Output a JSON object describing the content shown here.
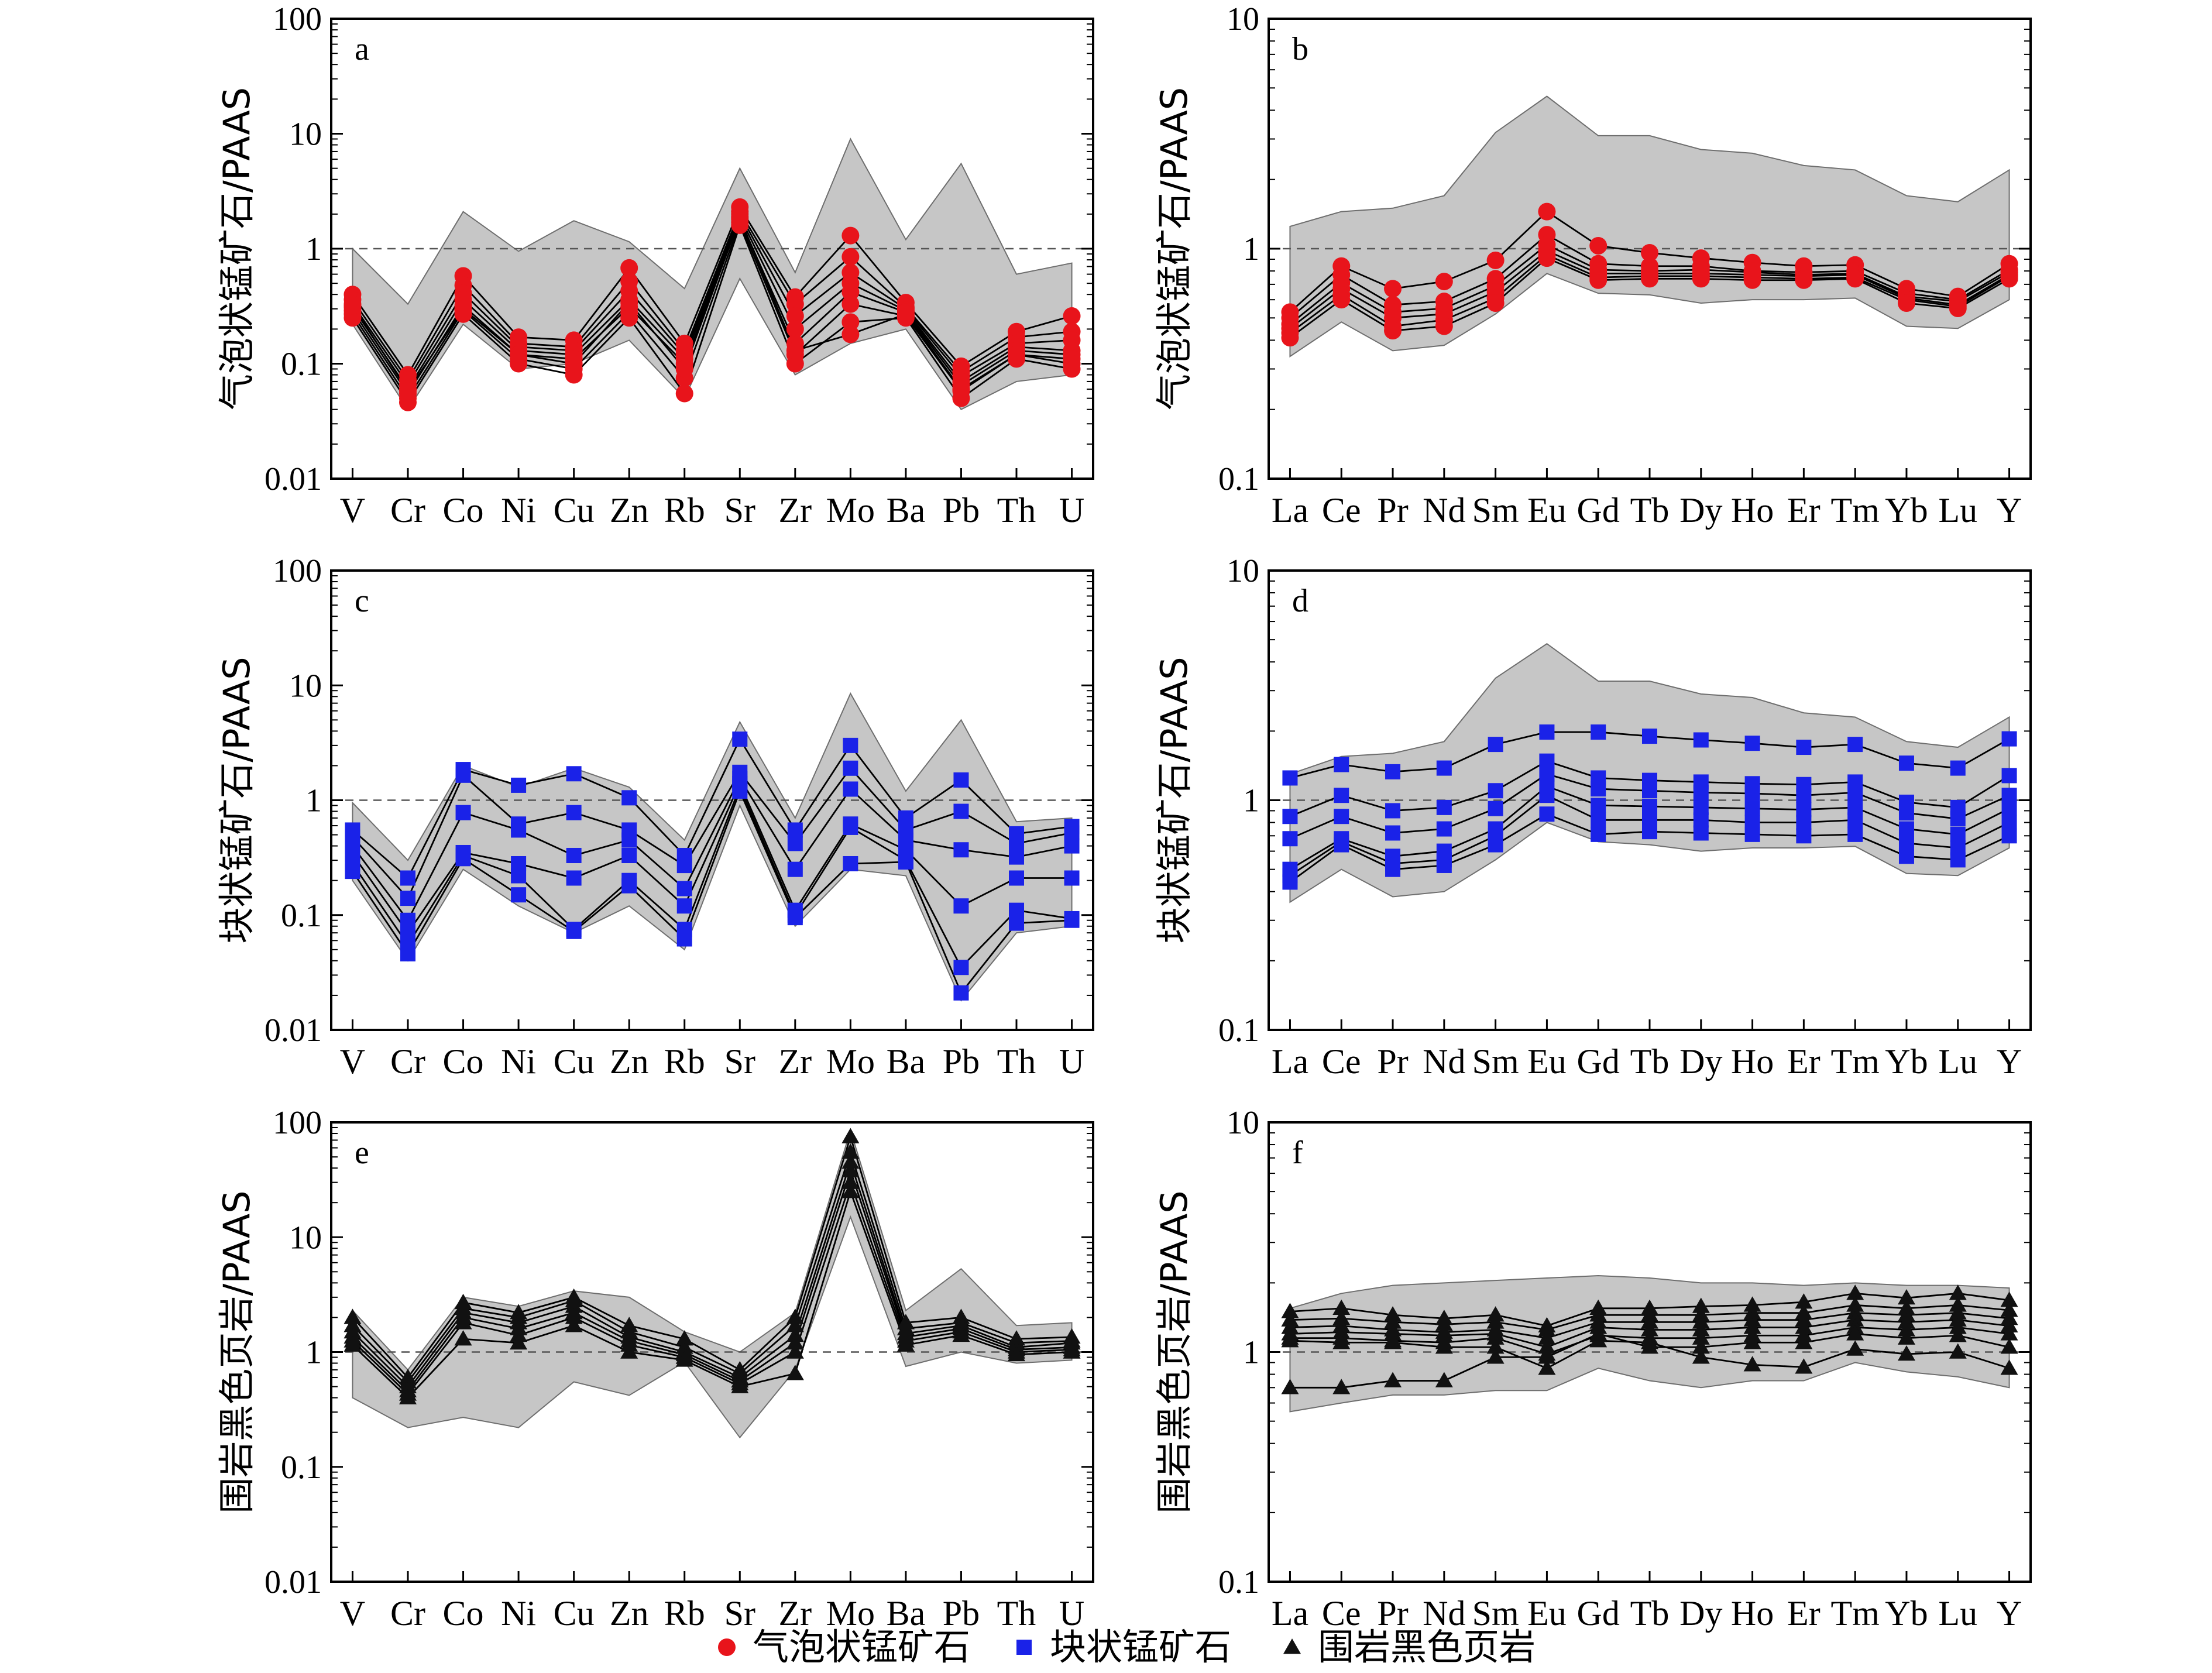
{
  "legend": [
    {
      "label": "气泡状锰矿石",
      "marker": "circle",
      "color": "#e8141b"
    },
    {
      "label": "块状锰矿石",
      "marker": "square",
      "color": "#1a22e8"
    },
    {
      "label": "围岩黑色页岩",
      "marker": "triangle",
      "color": "#111111"
    }
  ],
  "colors": {
    "envelope": "#c6c6c6",
    "line": "#000000",
    "reference_line": "#555555"
  },
  "chart_data": [
    {
      "panel": "a",
      "type": "line",
      "yscale": "log",
      "ylim": [
        0.01,
        100
      ],
      "ylabel": "气泡状锰矿石/PAAS",
      "yticks": [
        "0.01",
        "0.1",
        "1",
        "10",
        "100"
      ],
      "reference_y": 1,
      "categories": [
        "V",
        "Cr",
        "Co",
        "Ni",
        "Cu",
        "Zn",
        "Rb",
        "Sr",
        "Zr",
        "Mo",
        "Ba",
        "Pb",
        "Th",
        "U"
      ],
      "marker": "circle",
      "color": "#e8141b",
      "envelope_upper": [
        1.0,
        0.33,
        2.1,
        0.95,
        1.75,
        1.15,
        0.45,
        5.0,
        0.62,
        9.0,
        1.2,
        5.5,
        0.6,
        0.75
      ],
      "envelope_lower": [
        0.22,
        0.04,
        0.22,
        0.09,
        0.1,
        0.16,
        0.05,
        0.55,
        0.08,
        0.15,
        0.2,
        0.04,
        0.07,
        0.08
      ],
      "series": [
        {
          "values": [
            0.4,
            0.08,
            0.58,
            0.17,
            0.16,
            0.68,
            0.15,
            2.3,
            0.38,
            1.3,
            0.34,
            0.095,
            0.19,
            0.26
          ]
        },
        {
          "values": [
            0.36,
            0.072,
            0.48,
            0.15,
            0.14,
            0.52,
            0.13,
            2.1,
            0.33,
            0.85,
            0.31,
            0.085,
            0.17,
            0.19
          ]
        },
        {
          "values": [
            0.33,
            0.066,
            0.41,
            0.14,
            0.13,
            0.43,
            0.12,
            2.0,
            0.26,
            0.62,
            0.3,
            0.078,
            0.15,
            0.16
          ]
        },
        {
          "values": [
            0.31,
            0.06,
            0.36,
            0.13,
            0.12,
            0.36,
            0.11,
            1.9,
            0.2,
            0.5,
            0.29,
            0.07,
            0.14,
            0.13
          ]
        },
        {
          "values": [
            0.29,
            0.055,
            0.32,
            0.12,
            0.11,
            0.31,
            0.1,
            1.8,
            0.15,
            0.42,
            0.28,
            0.065,
            0.13,
            0.12
          ]
        },
        {
          "values": [
            0.27,
            0.05,
            0.29,
            0.11,
            0.09,
            0.28,
            0.075,
            1.7,
            0.12,
            0.33,
            0.26,
            0.058,
            0.12,
            0.11
          ]
        },
        {
          "values": [
            0.25,
            0.046,
            0.27,
            0.1,
            0.08,
            0.25,
            0.055,
            1.6,
            0.1,
            0.23,
            0.25,
            0.05,
            0.11,
            0.09
          ]
        },
        {
          "values": [
            0.32,
            0.058,
            0.3,
            0.12,
            0.1,
            0.34,
            0.09,
            1.85,
            0.13,
            0.18,
            0.27,
            0.06,
            0.12,
            0.1
          ]
        }
      ]
    },
    {
      "panel": "b",
      "type": "line",
      "yscale": "log",
      "ylim": [
        0.1,
        10
      ],
      "ylabel": "气泡状锰矿石/PAAS",
      "yticks": [
        "0.1",
        "1",
        "10"
      ],
      "reference_y": 1,
      "categories": [
        "La",
        "Ce",
        "Pr",
        "Nd",
        "Sm",
        "Eu",
        "Gd",
        "Tb",
        "Dy",
        "Ho",
        "Er",
        "Tm",
        "Yb",
        "Lu",
        "Y"
      ],
      "marker": "circle",
      "color": "#e8141b",
      "envelope_upper": [
        1.25,
        1.45,
        1.5,
        1.7,
        3.2,
        4.6,
        3.1,
        3.1,
        2.7,
        2.6,
        2.3,
        2.2,
        1.7,
        1.6,
        2.2
      ],
      "envelope_lower": [
        0.34,
        0.48,
        0.36,
        0.38,
        0.52,
        0.78,
        0.64,
        0.63,
        0.58,
        0.6,
        0.6,
        0.61,
        0.46,
        0.45,
        0.6
      ],
      "series": [
        {
          "values": [
            0.53,
            0.84,
            0.67,
            0.72,
            0.89,
            1.45,
            1.03,
            0.96,
            0.91,
            0.87,
            0.84,
            0.85,
            0.67,
            0.62,
            0.86
          ]
        },
        {
          "values": [
            0.5,
            0.77,
            0.57,
            0.59,
            0.74,
            1.15,
            0.86,
            0.84,
            0.84,
            0.8,
            0.79,
            0.8,
            0.64,
            0.6,
            0.81
          ]
        },
        {
          "values": [
            0.47,
            0.71,
            0.53,
            0.55,
            0.69,
            1.04,
            0.81,
            0.8,
            0.81,
            0.79,
            0.77,
            0.78,
            0.62,
            0.59,
            0.79
          ]
        },
        {
          "values": [
            0.45,
            0.67,
            0.5,
            0.52,
            0.65,
            0.98,
            0.78,
            0.78,
            0.78,
            0.77,
            0.76,
            0.77,
            0.61,
            0.57,
            0.77
          ]
        },
        {
          "values": [
            0.43,
            0.63,
            0.46,
            0.49,
            0.61,
            0.94,
            0.75,
            0.76,
            0.76,
            0.75,
            0.74,
            0.75,
            0.6,
            0.56,
            0.76
          ]
        },
        {
          "values": [
            0.41,
            0.6,
            0.44,
            0.46,
            0.58,
            0.91,
            0.73,
            0.74,
            0.74,
            0.73,
            0.73,
            0.74,
            0.58,
            0.55,
            0.74
          ]
        }
      ]
    },
    {
      "panel": "c",
      "type": "line",
      "yscale": "log",
      "ylim": [
        0.01,
        100
      ],
      "ylabel": "块状锰矿石/PAAS",
      "yticks": [
        "0.01",
        "0.1",
        "1",
        "10",
        "100"
      ],
      "reference_y": 1,
      "categories": [
        "V",
        "Cr",
        "Co",
        "Ni",
        "Cu",
        "Zn",
        "Rb",
        "Sr",
        "Zr",
        "Mo",
        "Ba",
        "Pb",
        "Th",
        "U"
      ],
      "marker": "square",
      "color": "#1a22e8",
      "envelope_upper": [
        0.95,
        0.3,
        2.0,
        1.3,
        1.9,
        1.3,
        0.45,
        4.8,
        0.7,
        8.5,
        1.2,
        5.0,
        0.65,
        0.7
      ],
      "envelope_lower": [
        0.2,
        0.04,
        0.25,
        0.12,
        0.07,
        0.12,
        0.05,
        0.9,
        0.08,
        0.25,
        0.22,
        0.018,
        0.07,
        0.08
      ],
      "series": [
        {
          "values": [
            0.55,
            0.21,
            1.85,
            1.35,
            1.7,
            1.05,
            0.33,
            3.4,
            0.55,
            3.0,
            0.7,
            1.5,
            0.51,
            0.59
          ]
        },
        {
          "values": [
            0.48,
            0.14,
            1.65,
            0.62,
            0.78,
            0.55,
            0.27,
            1.75,
            0.42,
            1.9,
            0.55,
            0.8,
            0.42,
            0.52
          ]
        },
        {
          "values": [
            0.4,
            0.09,
            0.78,
            0.55,
            0.33,
            0.45,
            0.17,
            1.55,
            0.25,
            1.25,
            0.45,
            0.37,
            0.32,
            0.4
          ]
        },
        {
          "values": [
            0.34,
            0.07,
            0.35,
            0.28,
            0.21,
            0.33,
            0.12,
            1.4,
            0.11,
            0.62,
            0.37,
            0.12,
            0.21,
            0.21
          ]
        },
        {
          "values": [
            0.28,
            0.055,
            0.33,
            0.22,
            0.075,
            0.2,
            0.075,
            1.3,
            0.1,
            0.58,
            0.3,
            0.035,
            0.11,
            0.093
          ]
        },
        {
          "values": [
            0.24,
            0.046,
            0.31,
            0.15,
            0.072,
            0.18,
            0.062,
            1.2,
            0.095,
            0.28,
            0.29,
            0.021,
            0.085,
            0.09
          ]
        }
      ]
    },
    {
      "panel": "d",
      "type": "line",
      "yscale": "log",
      "ylim": [
        0.1,
        10
      ],
      "ylabel": "块状锰矿石/PAAS",
      "yticks": [
        "0.1",
        "1",
        "10"
      ],
      "reference_y": 1,
      "categories": [
        "La",
        "Ce",
        "Pr",
        "Nd",
        "Sm",
        "Eu",
        "Gd",
        "Tb",
        "Dy",
        "Ho",
        "Er",
        "Tm",
        "Yb",
        "Lu",
        "Y"
      ],
      "marker": "square",
      "color": "#1a22e8",
      "envelope_upper": [
        1.3,
        1.55,
        1.6,
        1.8,
        3.4,
        4.8,
        3.3,
        3.3,
        2.9,
        2.8,
        2.4,
        2.3,
        1.8,
        1.7,
        2.3
      ],
      "envelope_lower": [
        0.36,
        0.5,
        0.38,
        0.4,
        0.55,
        0.8,
        0.66,
        0.64,
        0.6,
        0.62,
        0.62,
        0.63,
        0.48,
        0.47,
        0.62
      ],
      "series": [
        {
          "values": [
            1.25,
            1.43,
            1.33,
            1.38,
            1.75,
            1.98,
            1.98,
            1.9,
            1.83,
            1.77,
            1.7,
            1.75,
            1.45,
            1.38,
            1.85
          ]
        },
        {
          "values": [
            0.85,
            1.05,
            0.9,
            0.93,
            1.1,
            1.48,
            1.25,
            1.22,
            1.2,
            1.18,
            1.17,
            1.2,
            0.98,
            0.93,
            1.28
          ]
        },
        {
          "values": [
            0.68,
            0.85,
            0.72,
            0.75,
            0.92,
            1.3,
            1.12,
            1.1,
            1.08,
            1.07,
            1.05,
            1.08,
            0.88,
            0.83,
            1.05
          ]
        },
        {
          "values": [
            0.5,
            0.68,
            0.57,
            0.6,
            0.75,
            1.15,
            0.95,
            0.94,
            0.93,
            0.92,
            0.91,
            0.93,
            0.75,
            0.71,
            0.92
          ]
        },
        {
          "values": [
            0.47,
            0.66,
            0.53,
            0.55,
            0.7,
            1.05,
            0.82,
            0.82,
            0.82,
            0.8,
            0.8,
            0.82,
            0.65,
            0.62,
            0.8
          ]
        },
        {
          "values": [
            0.44,
            0.64,
            0.5,
            0.52,
            0.64,
            0.87,
            0.71,
            0.73,
            0.72,
            0.71,
            0.7,
            0.71,
            0.57,
            0.55,
            0.7
          ]
        }
      ]
    },
    {
      "panel": "e",
      "type": "line",
      "yscale": "log",
      "ylim": [
        0.01,
        100
      ],
      "ylabel": "围岩黑色页岩/PAAS",
      "yticks": [
        "0.01",
        "0.1",
        "1",
        "10",
        "100"
      ],
      "reference_y": 1,
      "categories": [
        "V",
        "Cr",
        "Co",
        "Ni",
        "Cu",
        "Zn",
        "Rb",
        "Sr",
        "Zr",
        "Mo",
        "Ba",
        "Pb",
        "Th",
        "U"
      ],
      "marker": "triangle",
      "color": "#111111",
      "envelope_upper": [
        2.3,
        0.7,
        3.0,
        2.5,
        3.4,
        3.0,
        1.5,
        1.0,
        2.2,
        85,
        2.3,
        5.3,
        1.7,
        1.8
      ],
      "envelope_lower": [
        0.4,
        0.22,
        0.27,
        0.22,
        0.55,
        0.42,
        0.82,
        0.18,
        0.7,
        15,
        0.75,
        1.0,
        0.8,
        0.85
      ],
      "series": [
        {
          "values": [
            2.0,
            0.6,
            2.7,
            2.2,
            3.0,
            1.7,
            1.3,
            0.7,
            2.0,
            75,
            1.8,
            2.0,
            1.3,
            1.35
          ]
        },
        {
          "values": [
            1.7,
            0.55,
            2.4,
            2.0,
            2.8,
            1.5,
            1.1,
            0.65,
            1.7,
            55,
            1.6,
            1.8,
            1.2,
            1.25
          ]
        },
        {
          "values": [
            1.5,
            0.5,
            2.2,
            1.8,
            2.5,
            1.35,
            1.0,
            0.6,
            1.4,
            45,
            1.45,
            1.7,
            1.1,
            1.2
          ]
        },
        {
          "values": [
            1.35,
            0.46,
            2.0,
            1.6,
            2.2,
            1.25,
            0.95,
            0.56,
            1.2,
            38,
            1.35,
            1.6,
            1.05,
            1.1
          ]
        },
        {
          "values": [
            1.25,
            0.43,
            1.8,
            1.4,
            2.0,
            1.15,
            0.9,
            0.53,
            1.0,
            30,
            1.25,
            1.5,
            1.0,
            1.05
          ]
        },
        {
          "values": [
            1.15,
            0.4,
            1.3,
            1.2,
            1.7,
            1.0,
            0.85,
            0.5,
            0.65,
            25,
            1.15,
            1.4,
            0.95,
            1.0
          ]
        }
      ]
    },
    {
      "panel": "f",
      "type": "line",
      "yscale": "log",
      "ylim": [
        0.1,
        10
      ],
      "ylabel": "围岩黑色页岩/PAAS",
      "yticks": [
        "0.1",
        "1",
        "10"
      ],
      "reference_y": 1,
      "categories": [
        "La",
        "Ce",
        "Pr",
        "Nd",
        "Sm",
        "Eu",
        "Gd",
        "Tb",
        "Dy",
        "Ho",
        "Er",
        "Tm",
        "Yb",
        "Lu",
        "Y"
      ],
      "marker": "triangle",
      "color": "#111111",
      "envelope_upper": [
        1.55,
        1.8,
        1.95,
        2.0,
        2.05,
        2.1,
        2.15,
        2.1,
        2.0,
        2.0,
        1.95,
        2.0,
        1.95,
        1.95,
        1.9
      ],
      "envelope_lower": [
        0.55,
        0.6,
        0.65,
        0.65,
        0.68,
        0.68,
        0.85,
        0.75,
        0.7,
        0.75,
        0.75,
        0.9,
        0.82,
        0.78,
        0.7
      ],
      "series": [
        {
          "values": [
            1.5,
            1.55,
            1.45,
            1.4,
            1.45,
            1.3,
            1.55,
            1.55,
            1.58,
            1.6,
            1.65,
            1.8,
            1.72,
            1.8,
            1.68
          ]
        },
        {
          "values": [
            1.38,
            1.4,
            1.35,
            1.32,
            1.35,
            1.25,
            1.45,
            1.45,
            1.45,
            1.48,
            1.48,
            1.6,
            1.55,
            1.6,
            1.52
          ]
        },
        {
          "values": [
            1.28,
            1.3,
            1.25,
            1.22,
            1.25,
            1.15,
            1.35,
            1.35,
            1.35,
            1.38,
            1.38,
            1.48,
            1.45,
            1.48,
            1.4
          ]
        },
        {
          "values": [
            1.2,
            1.22,
            1.2,
            1.18,
            1.2,
            1.05,
            1.28,
            1.25,
            1.25,
            1.28,
            1.28,
            1.38,
            1.35,
            1.38,
            1.3
          ]
        },
        {
          "values": [
            1.15,
            1.15,
            1.12,
            1.1,
            1.15,
            0.98,
            1.18,
            1.15,
            1.15,
            1.18,
            1.18,
            1.28,
            1.25,
            1.28,
            1.2
          ]
        },
        {
          "values": [
            1.12,
            1.1,
            1.1,
            1.05,
            1.05,
            0.85,
            1.12,
            1.1,
            0.95,
            0.88,
            0.86,
            1.03,
            0.98,
            1.0,
            0.85
          ]
        },
        {
          "values": [
            0.7,
            0.7,
            0.75,
            0.75,
            0.95,
            0.95,
            1.2,
            1.05,
            1.05,
            1.1,
            1.1,
            1.2,
            1.15,
            1.18,
            1.05
          ]
        }
      ]
    }
  ]
}
